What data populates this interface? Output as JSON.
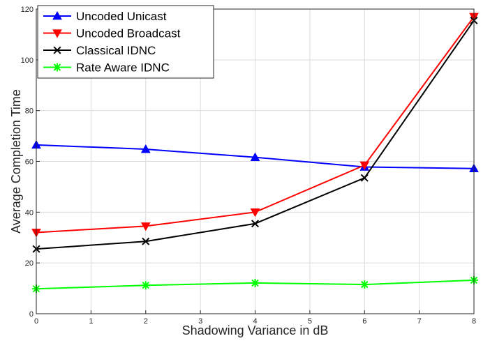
{
  "chart_data": {
    "type": "line",
    "xlabel": "Shadowing Variance in dB",
    "ylabel": "Average Completion Time",
    "xlim": [
      0,
      8
    ],
    "ylim": [
      0,
      120
    ],
    "xticks": [
      0,
      1,
      2,
      3,
      4,
      5,
      6,
      7,
      8
    ],
    "yticks": [
      0,
      20,
      40,
      60,
      80,
      100,
      120
    ],
    "grid": true,
    "legend_position": "top-left",
    "x": [
      0,
      2,
      4,
      6,
      8
    ],
    "series": [
      {
        "name": "Uncoded Unicast",
        "color": "#0000ff",
        "marker": "triangle-up",
        "values": [
          66.5,
          64.8,
          61.6,
          57.8,
          57.2
        ]
      },
      {
        "name": "Uncoded Broadcast",
        "color": "#ff0000",
        "marker": "triangle-down",
        "values": [
          32,
          34.5,
          40,
          58.5,
          117
        ]
      },
      {
        "name": "Classical IDNC",
        "color": "#000000",
        "marker": "x",
        "values": [
          25.5,
          28.5,
          35.5,
          53.5,
          115.5
        ]
      },
      {
        "name": "Rate Aware IDNC",
        "color": "#00ff00",
        "marker": "asterisk",
        "values": [
          9.8,
          11.2,
          12.1,
          11.5,
          13.2
        ]
      }
    ]
  }
}
